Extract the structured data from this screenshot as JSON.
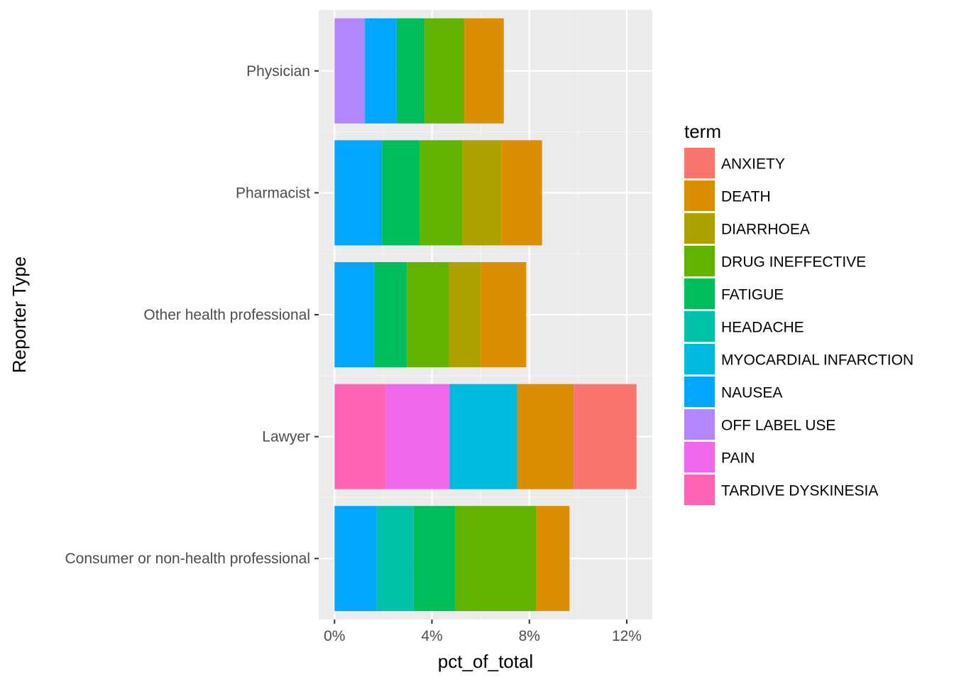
{
  "chart_data": {
    "type": "bar",
    "orientation": "horizontal",
    "stacked": true,
    "xlabel": "pct_of_total",
    "ylabel": "Reporter Type",
    "xlim": [
      -0.0065,
      0.1305
    ],
    "xticks": [
      {
        "value": 0.0,
        "label": "0%"
      },
      {
        "value": 0.04,
        "label": "4%"
      },
      {
        "value": 0.08,
        "label": "8%"
      },
      {
        "value": 0.12,
        "label": "12%"
      }
    ],
    "grid": true,
    "legend": {
      "title": "term",
      "position": "right",
      "entries": [
        {
          "term": "ANXIETY",
          "color": "#F8766D"
        },
        {
          "term": "DEATH",
          "color": "#DB8E00"
        },
        {
          "term": "DIARRHOEA",
          "color": "#AEA200"
        },
        {
          "term": "DRUG INEFFECTIVE",
          "color": "#64B200"
        },
        {
          "term": "FATIGUE",
          "color": "#00BD5C"
        },
        {
          "term": "HEADACHE",
          "color": "#00C1A7"
        },
        {
          "term": "MYOCARDIAL INFARCTION",
          "color": "#00BADE"
        },
        {
          "term": "NAUSEA",
          "color": "#00A6FF"
        },
        {
          "term": "OFF LABEL USE",
          "color": "#B385FF"
        },
        {
          "term": "PAIN",
          "color": "#EF67EB"
        },
        {
          "term": "TARDIVE DYSKINESIA",
          "color": "#FF63B6"
        }
      ]
    },
    "categories": [
      "Physician",
      "Pharmacist",
      "Other health professional",
      "Lawyer",
      "Consumer or non-health professional"
    ],
    "bars": [
      {
        "category": "Physician",
        "segments": [
          {
            "term": "OFF LABEL USE",
            "value": 0.0125
          },
          {
            "term": "NAUSEA",
            "value": 0.013
          },
          {
            "term": "FATIGUE",
            "value": 0.0115
          },
          {
            "term": "DRUG INEFFECTIVE",
            "value": 0.0163
          },
          {
            "term": "DEATH",
            "value": 0.0162
          }
        ]
      },
      {
        "category": "Pharmacist",
        "segments": [
          {
            "term": "NAUSEA",
            "value": 0.0195
          },
          {
            "term": "FATIGUE",
            "value": 0.0155
          },
          {
            "term": "DRUG INEFFECTIVE",
            "value": 0.0175
          },
          {
            "term": "DIARRHOEA",
            "value": 0.016
          },
          {
            "term": "DEATH",
            "value": 0.0167
          }
        ]
      },
      {
        "category": "Other health professional",
        "segments": [
          {
            "term": "NAUSEA",
            "value": 0.0165
          },
          {
            "term": "FATIGUE",
            "value": 0.0132
          },
          {
            "term": "DRUG INEFFECTIVE",
            "value": 0.0173
          },
          {
            "term": "DIARRHOEA",
            "value": 0.013
          },
          {
            "term": "DEATH",
            "value": 0.0187
          }
        ]
      },
      {
        "category": "Lawyer",
        "segments": [
          {
            "term": "TARDIVE DYSKINESIA",
            "value": 0.021
          },
          {
            "term": "PAIN",
            "value": 0.0262
          },
          {
            "term": "MYOCARDIAL INFARCTION",
            "value": 0.0278
          },
          {
            "term": "DEATH",
            "value": 0.0232
          },
          {
            "term": "ANXIETY",
            "value": 0.0258
          }
        ]
      },
      {
        "category": "Consumer or non-health professional",
        "segments": [
          {
            "term": "NAUSEA",
            "value": 0.0173
          },
          {
            "term": "HEADACHE",
            "value": 0.0152
          },
          {
            "term": "FATIGUE",
            "value": 0.0172
          },
          {
            "term": "DRUG INEFFECTIVE",
            "value": 0.033
          },
          {
            "term": "DEATH",
            "value": 0.0138
          }
        ]
      }
    ]
  },
  "style": {
    "panel_background": "#EBEBEB",
    "grid_major": "#FFFFFF",
    "grid_minor": "#F5F5F5",
    "tick_color": "#333333"
  }
}
